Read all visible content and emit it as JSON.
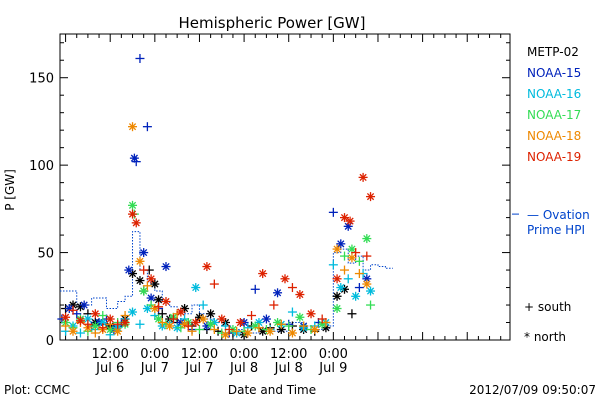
{
  "chart_data": {
    "type": "scatter",
    "title": "Hemispheric Power [GW]",
    "xlabel": "Date and Time",
    "ylabel": "P [GW]",
    "ylim": [
      0,
      175
    ],
    "xlim": [
      -25.5,
      95.5
    ],
    "x_unit": "hours from 2012-07-07 00:00 UT",
    "x_tick_labels": [
      {
        "x": -12,
        "top": "12:00",
        "bottom": "Jul 6"
      },
      {
        "x": 0,
        "top": "0:00",
        "bottom": "Jul 7"
      },
      {
        "x": 12,
        "top": "12:00",
        "bottom": "Jul 7"
      },
      {
        "x": 24,
        "top": "0:00",
        "bottom": "Jul 8"
      },
      {
        "x": 36,
        "top": "12:00",
        "bottom": "Jul 8"
      },
      {
        "x": 48,
        "top": "0:00",
        "bottom": "Jul 9"
      }
    ],
    "y_ticks": [
      0,
      50,
      100,
      150
    ],
    "legend": [
      "METP-02",
      "NOAA-15",
      "NOAA-16",
      "NOAA-17",
      "NOAA-18",
      "NOAA-19"
    ],
    "legend_placement": "right",
    "symbol_legend": [
      {
        "symbol": "+",
        "label": "south"
      },
      {
        "symbol": "*",
        "label": "north"
      }
    ],
    "ovation_label": [
      "— Ovation",
      "Prime HPI"
    ],
    "series": [
      {
        "name": "METP-02",
        "color": "#000000",
        "points": [
          [
            -24,
            18,
            "+"
          ],
          [
            -22,
            20,
            "*"
          ],
          [
            -20,
            19,
            "*"
          ],
          [
            -18,
            15,
            "+"
          ],
          [
            -16,
            10,
            "*"
          ],
          [
            -14,
            9,
            "+"
          ],
          [
            -12,
            8,
            "*"
          ],
          [
            -10,
            8,
            "+"
          ],
          [
            -8,
            12,
            "*"
          ],
          [
            -6,
            38,
            "*"
          ],
          [
            -4,
            34,
            "*"
          ],
          [
            -3,
            28,
            "+"
          ],
          [
            -1.5,
            40,
            "+"
          ],
          [
            0,
            32,
            "*"
          ],
          [
            1,
            23,
            "*"
          ],
          [
            2,
            15,
            "+"
          ],
          [
            4,
            12,
            "*"
          ],
          [
            6,
            10,
            "+"
          ],
          [
            8,
            18,
            "*"
          ],
          [
            10,
            8,
            "+"
          ],
          [
            12,
            13,
            "*"
          ],
          [
            14,
            6,
            "+"
          ],
          [
            15,
            15,
            "*"
          ],
          [
            17,
            5,
            "+"
          ],
          [
            19,
            10,
            "*"
          ],
          [
            21,
            4,
            "+"
          ],
          [
            24,
            3,
            "*"
          ],
          [
            26,
            8,
            "+"
          ],
          [
            29,
            5,
            "*"
          ],
          [
            31,
            7,
            "+"
          ],
          [
            34,
            6,
            "*"
          ],
          [
            37,
            8,
            "+"
          ],
          [
            40,
            6,
            "*"
          ],
          [
            43,
            5,
            "+"
          ],
          [
            46,
            7,
            "*"
          ],
          [
            49,
            25,
            "*"
          ],
          [
            51,
            29,
            "*"
          ],
          [
            53,
            15,
            "+"
          ]
        ]
      },
      {
        "name": "NOAA-15",
        "color": "#0022bb",
        "points": [
          [
            -25,
            12,
            "+"
          ],
          [
            -23,
            18,
            "*"
          ],
          [
            -21,
            15,
            "+"
          ],
          [
            -19,
            20,
            "*"
          ],
          [
            -17,
            8,
            "+"
          ],
          [
            -15,
            10,
            "*"
          ],
          [
            -13,
            12,
            "+"
          ],
          [
            -11,
            6,
            "*"
          ],
          [
            -9,
            10,
            "+"
          ],
          [
            -7,
            40,
            "*"
          ],
          [
            -5.5,
            104,
            "*"
          ],
          [
            -5,
            102,
            "+"
          ],
          [
            -4,
            161,
            "+"
          ],
          [
            -2,
            122,
            "+"
          ],
          [
            -3,
            50,
            "*"
          ],
          [
            -1,
            24,
            "*"
          ],
          [
            1,
            18,
            "+"
          ],
          [
            3,
            42,
            "*"
          ],
          [
            5,
            12,
            "+"
          ],
          [
            7,
            10,
            "*"
          ],
          [
            10,
            6,
            "+"
          ],
          [
            14,
            8,
            "*"
          ],
          [
            20,
            4,
            "+"
          ],
          [
            24,
            10,
            "*"
          ],
          [
            27,
            29,
            "+"
          ],
          [
            30,
            12,
            "*"
          ],
          [
            33,
            27,
            "*"
          ],
          [
            36,
            9,
            "+"
          ],
          [
            40,
            8,
            "*"
          ],
          [
            44,
            10,
            "+"
          ],
          [
            48,
            73,
            "+"
          ],
          [
            50,
            55,
            "*"
          ],
          [
            52,
            65,
            "*"
          ],
          [
            55,
            30,
            "+"
          ],
          [
            57,
            35,
            "*"
          ]
        ]
      },
      {
        "name": "NOAA-16",
        "color": "#00bbdd",
        "points": [
          [
            -24,
            5,
            "+"
          ],
          [
            -22,
            8,
            "*"
          ],
          [
            -20,
            4,
            "+"
          ],
          [
            -18,
            12,
            "*"
          ],
          [
            -16,
            6,
            "+"
          ],
          [
            -14,
            10,
            "*"
          ],
          [
            -12,
            3,
            "+"
          ],
          [
            -10,
            7,
            "*"
          ],
          [
            -8,
            12,
            "+"
          ],
          [
            -6,
            16,
            "*"
          ],
          [
            -4,
            9,
            "+"
          ],
          [
            -2,
            18,
            "*"
          ],
          [
            0,
            14,
            "+"
          ],
          [
            2,
            8,
            "*"
          ],
          [
            4,
            10,
            "+"
          ],
          [
            6,
            7,
            "*"
          ],
          [
            8,
            12,
            "+"
          ],
          [
            11,
            30,
            "*"
          ],
          [
            13,
            20,
            "+"
          ],
          [
            16,
            10,
            "*"
          ],
          [
            19,
            8,
            "+"
          ],
          [
            22,
            4,
            "*"
          ],
          [
            25,
            7,
            "+"
          ],
          [
            28,
            10,
            "*"
          ],
          [
            31,
            6,
            "+"
          ],
          [
            34,
            9,
            "*"
          ],
          [
            37,
            16,
            "+"
          ],
          [
            40,
            7,
            "*"
          ],
          [
            43,
            8,
            "+"
          ],
          [
            46,
            10,
            "*"
          ],
          [
            48,
            43,
            "+"
          ],
          [
            50,
            30,
            "*"
          ],
          [
            52,
            35,
            "+"
          ],
          [
            54,
            25,
            "*"
          ],
          [
            56,
            38,
            "+"
          ],
          [
            58,
            28,
            "*"
          ]
        ]
      },
      {
        "name": "NOAA-17",
        "color": "#33dd55",
        "points": [
          [
            -24,
            10,
            "*"
          ],
          [
            -22,
            7,
            "+"
          ],
          [
            -20,
            12,
            "*"
          ],
          [
            -18,
            5,
            "+"
          ],
          [
            -16,
            8,
            "*"
          ],
          [
            -14,
            14,
            "+"
          ],
          [
            -12,
            6,
            "*"
          ],
          [
            -10,
            10,
            "+"
          ],
          [
            -8,
            9,
            "*"
          ],
          [
            -6,
            77,
            "*"
          ],
          [
            -5.5,
            72,
            "+"
          ],
          [
            -3,
            28,
            "*"
          ],
          [
            -1,
            20,
            "+"
          ],
          [
            1,
            12,
            "*"
          ],
          [
            3,
            9,
            "+"
          ],
          [
            5,
            13,
            "*"
          ],
          [
            7,
            7,
            "+"
          ],
          [
            9,
            10,
            "*"
          ],
          [
            12,
            6,
            "+"
          ],
          [
            15,
            9,
            "*"
          ],
          [
            18,
            4,
            "+"
          ],
          [
            21,
            6,
            "*"
          ],
          [
            24,
            5,
            "+"
          ],
          [
            27,
            8,
            "*"
          ],
          [
            30,
            6,
            "+"
          ],
          [
            33,
            10,
            "*"
          ],
          [
            36,
            8,
            "+"
          ],
          [
            39,
            13,
            "*"
          ],
          [
            42,
            6,
            "+"
          ],
          [
            45,
            9,
            "*"
          ],
          [
            49,
            18,
            "*"
          ],
          [
            51,
            48,
            "+"
          ],
          [
            53,
            52,
            "*"
          ],
          [
            55,
            45,
            "+"
          ],
          [
            57,
            58,
            "*"
          ],
          [
            58,
            20,
            "+"
          ]
        ]
      },
      {
        "name": "NOAA-18",
        "color": "#ee8800",
        "points": [
          [
            -24,
            8,
            "+"
          ],
          [
            -22,
            5,
            "*"
          ],
          [
            -20,
            10,
            "+"
          ],
          [
            -18,
            7,
            "*"
          ],
          [
            -16,
            4,
            "+"
          ],
          [
            -14,
            6,
            "*"
          ],
          [
            -12,
            9,
            "+"
          ],
          [
            -10,
            5,
            "*"
          ],
          [
            -8,
            14,
            "+"
          ],
          [
            -6,
            122,
            "*"
          ],
          [
            -4,
            45,
            "*"
          ],
          [
            -2,
            31,
            "+"
          ],
          [
            0,
            18,
            "*"
          ],
          [
            2,
            10,
            "+"
          ],
          [
            4,
            8,
            "*"
          ],
          [
            6,
            15,
            "+"
          ],
          [
            8,
            9,
            "*"
          ],
          [
            10,
            5,
            "+"
          ],
          [
            13,
            12,
            "*"
          ],
          [
            16,
            6,
            "+"
          ],
          [
            19,
            3,
            "*"
          ],
          [
            22,
            5,
            "+"
          ],
          [
            25,
            4,
            "*"
          ],
          [
            28,
            7,
            "+"
          ],
          [
            31,
            5,
            "*"
          ],
          [
            34,
            9,
            "+"
          ],
          [
            37,
            4,
            "*"
          ],
          [
            40,
            8,
            "+"
          ],
          [
            43,
            6,
            "*"
          ],
          [
            46,
            10,
            "+"
          ],
          [
            49,
            52,
            "*"
          ],
          [
            51,
            40,
            "+"
          ],
          [
            53,
            47,
            "*"
          ],
          [
            55,
            38,
            "+"
          ],
          [
            57,
            32,
            "*"
          ]
        ]
      },
      {
        "name": "NOAA-19",
        "color": "#dd2200",
        "points": [
          [
            -24,
            13,
            "*"
          ],
          [
            -22,
            17,
            "+"
          ],
          [
            -20,
            11,
            "*"
          ],
          [
            -18,
            9,
            "+"
          ],
          [
            -16,
            15,
            "*"
          ],
          [
            -14,
            7,
            "+"
          ],
          [
            -12,
            12,
            "*"
          ],
          [
            -10,
            9,
            "+"
          ],
          [
            -8,
            10,
            "*"
          ],
          [
            -6,
            72,
            "*"
          ],
          [
            -5,
            67,
            "*"
          ],
          [
            -3,
            40,
            "+"
          ],
          [
            -1,
            35,
            "*"
          ],
          [
            1,
            19,
            "+"
          ],
          [
            3,
            22,
            "*"
          ],
          [
            5,
            12,
            "+"
          ],
          [
            7,
            16,
            "*"
          ],
          [
            9,
            8,
            "+"
          ],
          [
            11,
            10,
            "*"
          ],
          [
            14,
            42,
            "*"
          ],
          [
            16,
            32,
            "+"
          ],
          [
            18,
            12,
            "*"
          ],
          [
            20,
            6,
            "+"
          ],
          [
            23,
            10,
            "*"
          ],
          [
            26,
            14,
            "+"
          ],
          [
            29,
            38,
            "*"
          ],
          [
            32,
            20,
            "+"
          ],
          [
            35,
            35,
            "*"
          ],
          [
            37,
            30,
            "+"
          ],
          [
            39,
            26,
            "*"
          ],
          [
            42,
            15,
            "*"
          ],
          [
            45,
            12,
            "+"
          ],
          [
            49,
            35,
            "*"
          ],
          [
            51,
            70,
            "*"
          ],
          [
            52.5,
            68,
            "*"
          ],
          [
            54,
            50,
            "+"
          ],
          [
            56,
            93,
            "*"
          ],
          [
            58,
            82,
            "*"
          ],
          [
            57,
            48,
            "+"
          ]
        ]
      }
    ],
    "ovation_prime": {
      "name": "Ovation Prime HPI",
      "color": "#0044cc",
      "x": [
        -25.5,
        -21,
        -17,
        -13,
        -10,
        -8,
        -6,
        -4,
        -2,
        0,
        2,
        4,
        6,
        8,
        10,
        12,
        14,
        16,
        18,
        21,
        24,
        28,
        32,
        36,
        40,
        44,
        47,
        48,
        50,
        52,
        54,
        56,
        58,
        60,
        62
      ],
      "y": [
        28,
        20,
        24,
        18,
        22,
        25,
        62,
        40,
        33,
        28,
        22,
        19,
        17,
        15,
        20,
        15,
        12,
        10,
        8,
        6,
        4,
        7,
        5,
        10,
        8,
        6,
        8,
        50,
        52,
        44,
        48,
        40,
        43,
        42,
        41
      ]
    }
  },
  "footer": {
    "left": "Plot: CCMC",
    "right": "2012/07/09 09:50:07"
  }
}
